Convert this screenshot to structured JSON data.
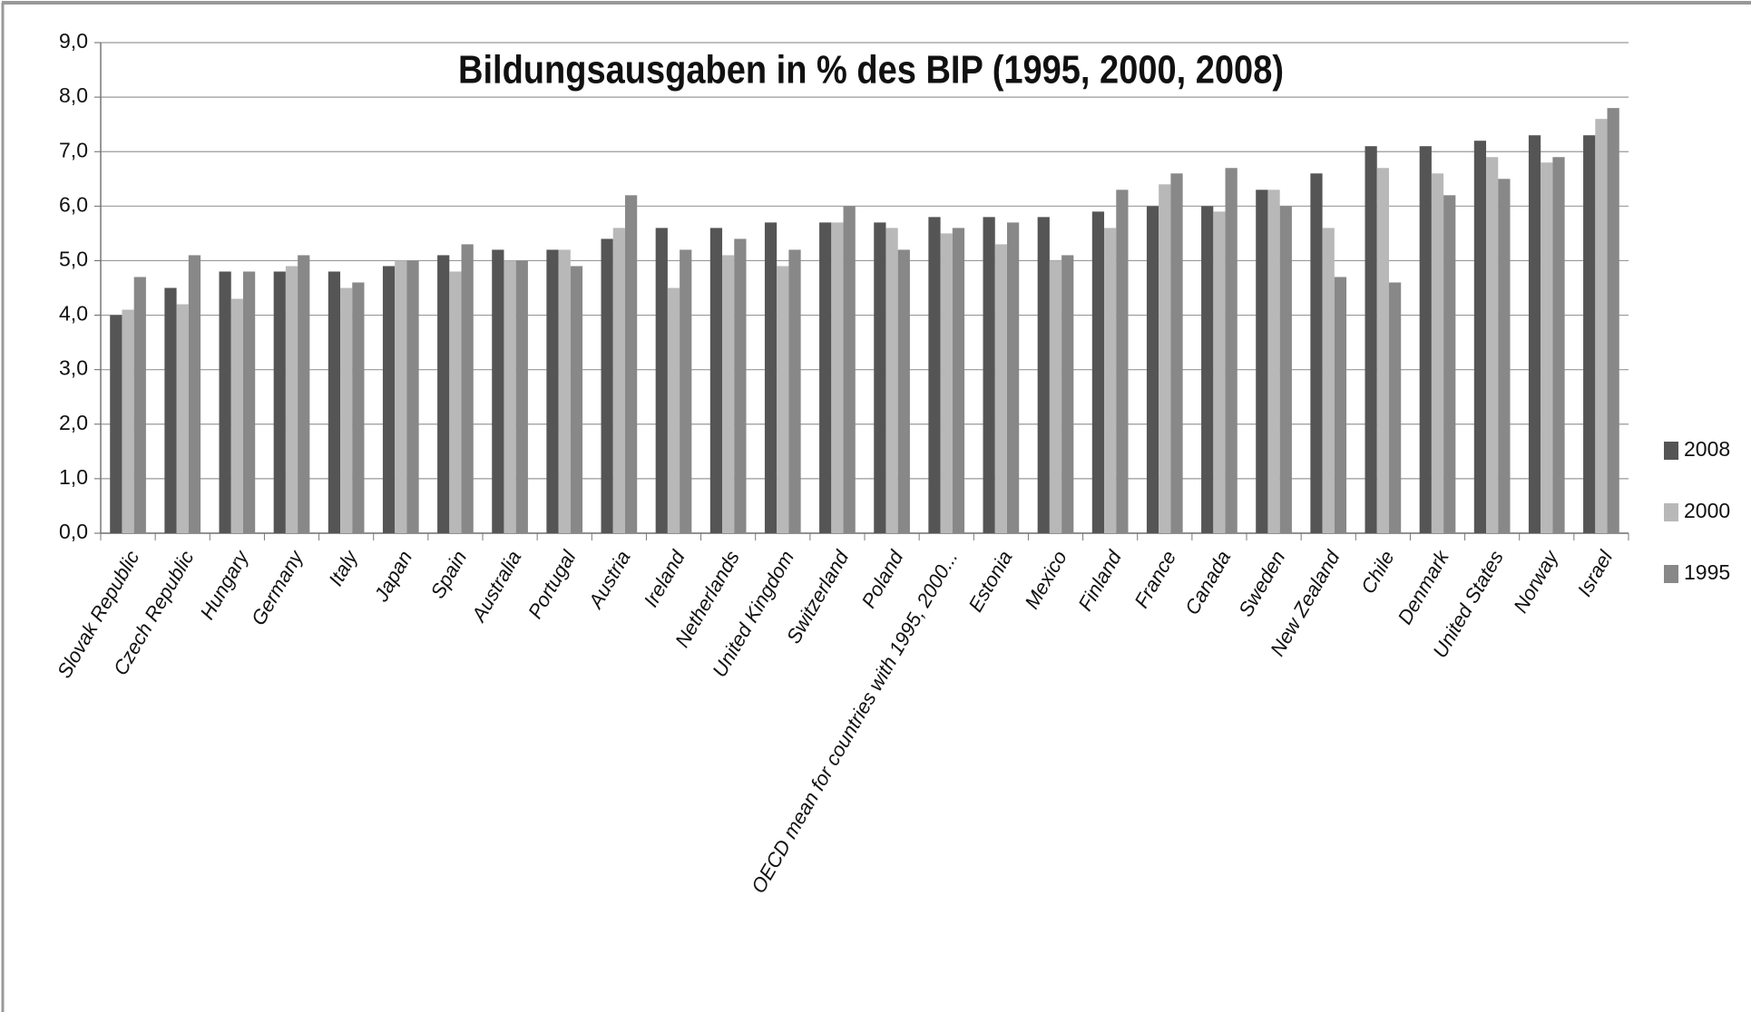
{
  "chart_data": {
    "type": "bar",
    "title": "Bildungsausgaben in % des BIP (1995, 2000, 2008)",
    "categories": [
      "Slovak Republic",
      "Czech Republic",
      "Hungary",
      "Germany",
      "Italy",
      "Japan",
      "Spain",
      "Australia",
      "Portugal",
      "Austria",
      "Ireland",
      "Netherlands",
      "United Kingdom",
      "Switzerland",
      "Poland",
      "OECD mean for countries with 1995, 2000...",
      "Estonia",
      "Mexico",
      "Finland",
      "France",
      "Canada",
      "Sweden",
      "New Zealand",
      "Chile",
      "Denmark",
      "United States",
      "Norway",
      "Israel"
    ],
    "series": [
      {
        "name": "2008",
        "color": "#555555",
        "values": [
          4.0,
          4.5,
          4.8,
          4.8,
          4.8,
          4.9,
          5.1,
          5.2,
          5.2,
          5.4,
          5.6,
          5.6,
          5.7,
          5.7,
          5.7,
          5.8,
          5.8,
          5.8,
          5.9,
          6.0,
          6.0,
          6.3,
          6.6,
          7.1,
          7.1,
          7.2,
          7.3,
          7.3
        ]
      },
      {
        "name": "2000",
        "color": "#b8b8b8",
        "values": [
          4.1,
          4.2,
          4.3,
          4.9,
          4.5,
          5.0,
          4.8,
          5.0,
          5.2,
          5.6,
          4.5,
          5.1,
          4.9,
          5.7,
          5.6,
          5.5,
          5.3,
          5.0,
          5.6,
          6.4,
          5.9,
          6.3,
          5.6,
          6.7,
          6.6,
          6.9,
          6.8,
          7.6
        ]
      },
      {
        "name": "1995",
        "color": "#888888",
        "values": [
          4.7,
          5.1,
          4.8,
          5.1,
          4.6,
          5.0,
          5.3,
          5.0,
          4.9,
          6.2,
          5.2,
          5.4,
          5.2,
          6.0,
          5.2,
          5.6,
          5.7,
          5.1,
          6.3,
          6.6,
          6.7,
          6.0,
          4.7,
          4.6,
          6.2,
          6.5,
          6.9,
          7.8
        ]
      }
    ],
    "ylim": [
      0,
      9
    ],
    "yticks": [
      {
        "value": 0,
        "label": "0,0"
      },
      {
        "value": 1,
        "label": "1,0"
      },
      {
        "value": 2,
        "label": "2,0"
      },
      {
        "value": 3,
        "label": "3,0"
      },
      {
        "value": 4,
        "label": "4,0"
      },
      {
        "value": 5,
        "label": "5,0"
      },
      {
        "value": 6,
        "label": "6,0"
      },
      {
        "value": 7,
        "label": "7,0"
      },
      {
        "value": 8,
        "label": "8,0"
      },
      {
        "value": 9,
        "label": "9,0"
      }
    ],
    "grid": true,
    "legend": "right"
  }
}
